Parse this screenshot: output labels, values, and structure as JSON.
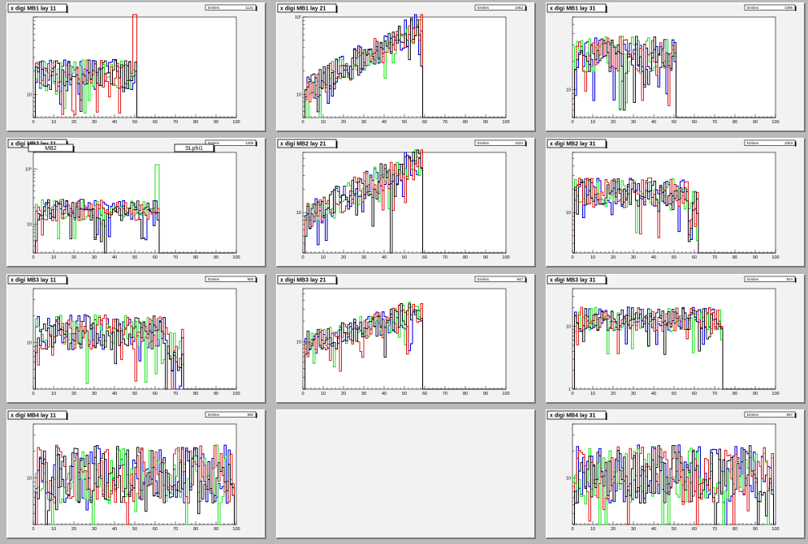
{
  "colors": {
    "black": "#000000",
    "red": "#e00000",
    "green": "#00e000",
    "blue": "#0000e0",
    "pad_bg": "#f2f2f2",
    "window_bg": "#b9b9b9"
  },
  "x_ticks": [
    "0",
    "10",
    "20",
    "30",
    "40",
    "50",
    "60",
    "70",
    "80",
    "90",
    "100"
  ],
  "stats_label": "Entries",
  "legend_labels": [
    "MB2",
    "SLphi1"
  ],
  "chart_data": [
    {
      "id": "mb1_l11",
      "type": "histogram",
      "title": "x digi MB1 lay 11",
      "entries": "1131",
      "xlim": [
        0,
        100
      ],
      "ylog": true,
      "ylim": [
        5,
        100
      ],
      "ytick_labels": [
        {
          "v": 10,
          "t": "10"
        }
      ],
      "end": 51,
      "start": 1,
      "base": 18,
      "spikes": [
        {
          "x": 49,
          "s": 1,
          "v": 120
        },
        {
          "x": 50,
          "s": 1,
          "v": 120
        },
        {
          "x": 23,
          "s": 0,
          "v": 6
        },
        {
          "x": 11,
          "s": 2,
          "v": 10
        }
      ]
    },
    {
      "id": "mb1_l21",
      "type": "histogram",
      "title": "x digi MB1 lay 21",
      "entries": "1062",
      "xlim": [
        0,
        100
      ],
      "ylog": true,
      "ylim": [
        5,
        100
      ],
      "ytick_labels": [
        {
          "v": 10,
          "t": "10"
        },
        {
          "v": 100,
          "t": "10²"
        }
      ],
      "end": 59,
      "start": 1,
      "base": 11,
      "slope": 0.035,
      "spikes": [
        {
          "x": 58,
          "s": 1,
          "v": 160
        }
      ]
    },
    {
      "id": "mb1_l31",
      "type": "histogram",
      "title": "x digi MB1 lay 31",
      "entries": "1096",
      "xlim": [
        0,
        100
      ],
      "ylog": true,
      "ylim": [
        5,
        60
      ],
      "ytick_labels": [
        {
          "v": 10,
          "t": "10"
        }
      ],
      "end": 51,
      "start": 1,
      "base": 24,
      "spikes": [
        {
          "x": 23,
          "s": 2,
          "v": 6
        },
        {
          "x": 25,
          "s": 0,
          "v": 6
        }
      ]
    },
    {
      "id": "mb2_l11",
      "type": "histogram",
      "title": "x digi MB2 lay 11",
      "entries": "1209",
      "xlim": [
        0,
        100
      ],
      "ylog": true,
      "ylim": [
        3,
        200
      ],
      "ytick_labels": [
        {
          "v": 10,
          "t": "10"
        },
        {
          "v": 100,
          "t": "10²"
        }
      ],
      "end": 62,
      "start": 1,
      "base": 18,
      "legend": true,
      "spikes": [
        {
          "x": 60,
          "s": 2,
          "v": 120
        },
        {
          "x": 61,
          "s": 2,
          "v": 120
        },
        {
          "x": 35,
          "s": 0,
          "v": 3
        },
        {
          "x": 1,
          "s": 1,
          "v": 3
        }
      ]
    },
    {
      "id": "mb2_l21",
      "type": "histogram",
      "title": "x digi MB2 lay 21",
      "entries": "1024",
      "xlim": [
        0,
        100
      ],
      "ylog": true,
      "ylim": [
        3,
        60
      ],
      "ytick_labels": [
        {
          "v": 10,
          "t": "10"
        }
      ],
      "end": 59,
      "start": 1,
      "base": 9,
      "slope": 0.03,
      "spikes": [
        {
          "x": 43,
          "s": 0,
          "v": 3
        }
      ]
    },
    {
      "id": "mb2_l31",
      "type": "histogram",
      "title": "x digi MB2 lay 31",
      "entries": "1053",
      "xlim": [
        0,
        100
      ],
      "ylog": true,
      "ylim": [
        3,
        60
      ],
      "ytick_labels": [
        {
          "v": 10,
          "t": "10"
        }
      ],
      "end": 62,
      "start": 1,
      "base": 18,
      "tail": 6
    },
    {
      "id": "mb3_l11",
      "type": "histogram",
      "title": "x digi MB3 lay 11",
      "entries": "906",
      "xlim": [
        0,
        100
      ],
      "ylog": true,
      "ylim": [
        3,
        40
      ],
      "ytick_labels": [
        {
          "v": 10,
          "t": "10"
        }
      ],
      "end": 74,
      "start": 1,
      "base": 13,
      "tail": 10
    },
    {
      "id": "mb3_l21",
      "type": "histogram",
      "title": "x digi MB3 lay 21",
      "entries": "947",
      "xlim": [
        0,
        100
      ],
      "ylog": true,
      "ylim": [
        2,
        60
      ],
      "ytick_labels": [
        {
          "v": 10,
          "t": "10"
        }
      ],
      "end": 59,
      "start": 1,
      "base": 9,
      "slope": 0.02
    },
    {
      "id": "mb3_l31",
      "type": "histogram",
      "title": "x digi MB3 lay 31",
      "entries": "924",
      "xlim": [
        0,
        100
      ],
      "ylog": true,
      "ylim": [
        1,
        40
      ],
      "ytick_labels": [
        {
          "v": 1,
          "t": "1"
        },
        {
          "v": 10,
          "t": "10"
        }
      ],
      "end": 74,
      "start": 1,
      "base": 13
    },
    {
      "id": "mb4_l11",
      "type": "histogram",
      "title": "x digi MB4 lay 11",
      "entries": "992",
      "xlim": [
        0,
        100
      ],
      "ylog": true,
      "ylim": [
        3,
        40
      ],
      "ytick_labels": [
        {
          "v": 10,
          "t": "10"
        }
      ],
      "end": 99,
      "start": 1,
      "base": 11,
      "noise": 0.75
    },
    {
      "id": "mb4_l21",
      "type": "empty"
    },
    {
      "id": "mb4_l31",
      "type": "histogram",
      "title": "x digi MB4 lay 31",
      "entries": "967",
      "xlim": [
        0,
        100
      ],
      "ylog": true,
      "ylim": [
        3,
        40
      ],
      "ytick_labels": [
        {
          "v": 10,
          "t": "10"
        }
      ],
      "end": 99,
      "start": 1,
      "base": 11,
      "noise": 0.75
    }
  ]
}
